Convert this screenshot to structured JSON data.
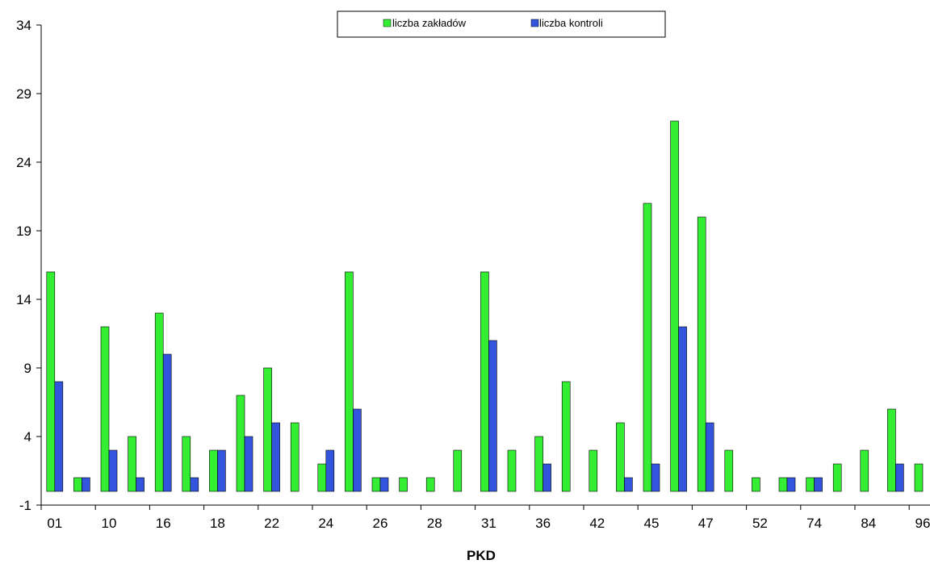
{
  "chart_data": {
    "type": "bar",
    "xlabel": "PKD",
    "ylabel": "",
    "ylim": [
      -1,
      34
    ],
    "yticks": [
      -1,
      4,
      9,
      14,
      19,
      24,
      29,
      34
    ],
    "grid": false,
    "legend_position": "top-center",
    "categories": [
      "01",
      "",
      "10",
      "",
      "16",
      "",
      "18",
      "",
      "22",
      "",
      "24",
      "",
      "26",
      "",
      "28",
      "",
      "31",
      "",
      "36",
      "",
      "42",
      "",
      "45",
      "",
      "47",
      "",
      "52",
      "",
      "74",
      "",
      "84",
      "",
      "96"
    ],
    "series": [
      {
        "name": "liczba zakładów",
        "color": "#33ee33",
        "values": [
          16,
          1,
          12,
          4,
          13,
          4,
          3,
          7,
          9,
          5,
          2,
          16,
          1,
          1,
          1,
          3,
          16,
          3,
          4,
          8,
          3,
          5,
          21,
          27,
          20,
          3,
          1,
          1,
          1,
          2,
          3,
          6,
          2
        ]
      },
      {
        "name": "liczba kontroli",
        "color": "#3355dd",
        "values": [
          8,
          1,
          3,
          1,
          10,
          1,
          3,
          4,
          5,
          0,
          3,
          6,
          1,
          0,
          0,
          0,
          11,
          0,
          2,
          0,
          0,
          1,
          2,
          12,
          5,
          0,
          0,
          1,
          1,
          0,
          0,
          2,
          0
        ]
      }
    ]
  }
}
